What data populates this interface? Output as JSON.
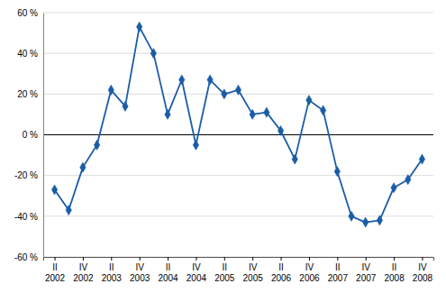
{
  "chart_data": {
    "type": "line",
    "categories": [
      "II\n2002",
      null,
      "IV\n2002",
      null,
      "II\n2003",
      null,
      "IV\n2003",
      null,
      "II\n2004",
      null,
      "IV\n2004",
      null,
      "II\n2005",
      null,
      "IV\n2005",
      null,
      "II\n2006",
      null,
      "IV\n2006",
      null,
      "II\n2007",
      null,
      "IV\n2007",
      null,
      "II\n2008",
      null,
      "IV\n2008"
    ],
    "values": [
      -27,
      -37,
      -16,
      -5,
      22,
      14,
      53,
      40,
      10,
      27,
      -5,
      27,
      20,
      22,
      10,
      11,
      2,
      -12,
      17,
      12,
      -18,
      -40,
      -43,
      -42,
      -26,
      -22,
      -12
    ],
    "color": "#1a5da6",
    "marker": "diamond",
    "ylim": [
      -60,
      60
    ],
    "yticks": [
      {
        "value": -60,
        "label": "-60 %"
      },
      {
        "value": -40,
        "label": "-40 %"
      },
      {
        "value": -20,
        "label": "-20 %"
      },
      {
        "value": 0,
        "label": "0 %"
      },
      {
        "value": 20,
        "label": "20 %"
      },
      {
        "value": 40,
        "label": "40 %"
      },
      {
        "value": 60,
        "label": "60 %"
      }
    ],
    "grid": true
  }
}
